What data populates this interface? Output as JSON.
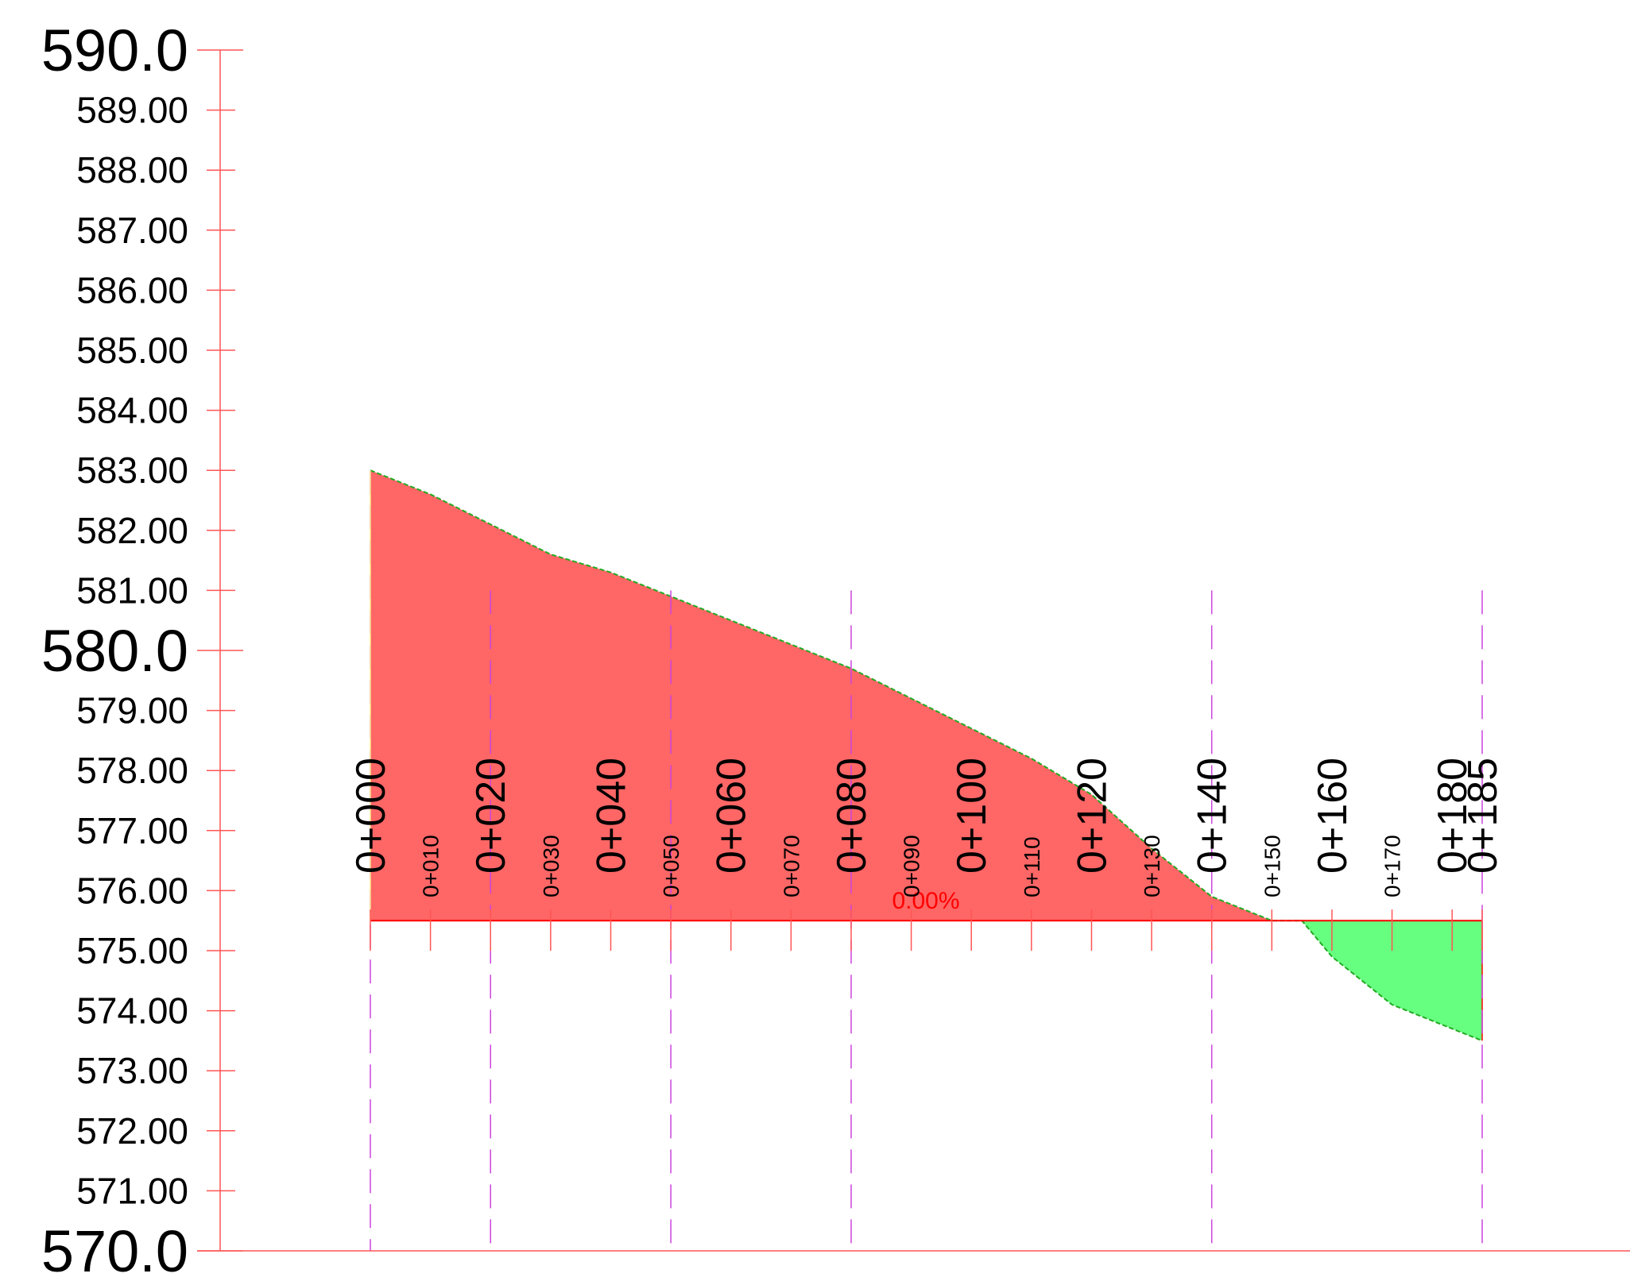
{
  "chart_data": {
    "type": "area",
    "title": "",
    "xlabel": "",
    "ylabel": "",
    "xlim": [
      -25,
      220
    ],
    "ylim": [
      570,
      590
    ],
    "y_ticks_major": [
      "590.0",
      "580.0",
      "570.0"
    ],
    "y_ticks_minor": [
      "589.00",
      "588.00",
      "587.00",
      "586.00",
      "585.00",
      "584.00",
      "583.00",
      "582.00",
      "581.00",
      "579.00",
      "578.00",
      "577.00",
      "576.00",
      "575.00",
      "574.00",
      "573.00",
      "572.00",
      "571.00"
    ],
    "station_labels_major": [
      "0+000",
      "0+020",
      "0+040",
      "0+060",
      "0+080",
      "0+100",
      "0+120",
      "0+140",
      "0+160",
      "0+180",
      "0+185"
    ],
    "station_labels_minor": [
      "0+010",
      "0+030",
      "0+050",
      "0+070",
      "0+090",
      "0+110",
      "0+130",
      "0+150",
      "0+170"
    ],
    "grade_label": "0.00%",
    "design_elevation": 575.5,
    "ground_profile": {
      "x": [
        0,
        10,
        20,
        30,
        40,
        50,
        60,
        70,
        80,
        90,
        100,
        110,
        120,
        130,
        140,
        150,
        155,
        160,
        170,
        175,
        185
      ],
      "y": [
        583.0,
        582.6,
        582.1,
        581.6,
        581.3,
        580.9,
        580.5,
        580.1,
        579.7,
        579.2,
        578.7,
        578.2,
        577.6,
        576.7,
        575.9,
        575.5,
        575.5,
        574.9,
        574.1,
        573.9,
        573.5
      ]
    },
    "section_lines_x": [
      0,
      20,
      50,
      80,
      140,
      185
    ],
    "colors": {
      "cut_fill": "#ff6666",
      "fill_fill": "#66ff80",
      "axis": "#ff5555",
      "design_line": "#ff0000",
      "ground_line": "#22aa22",
      "section_line": "#cc44dd"
    }
  }
}
